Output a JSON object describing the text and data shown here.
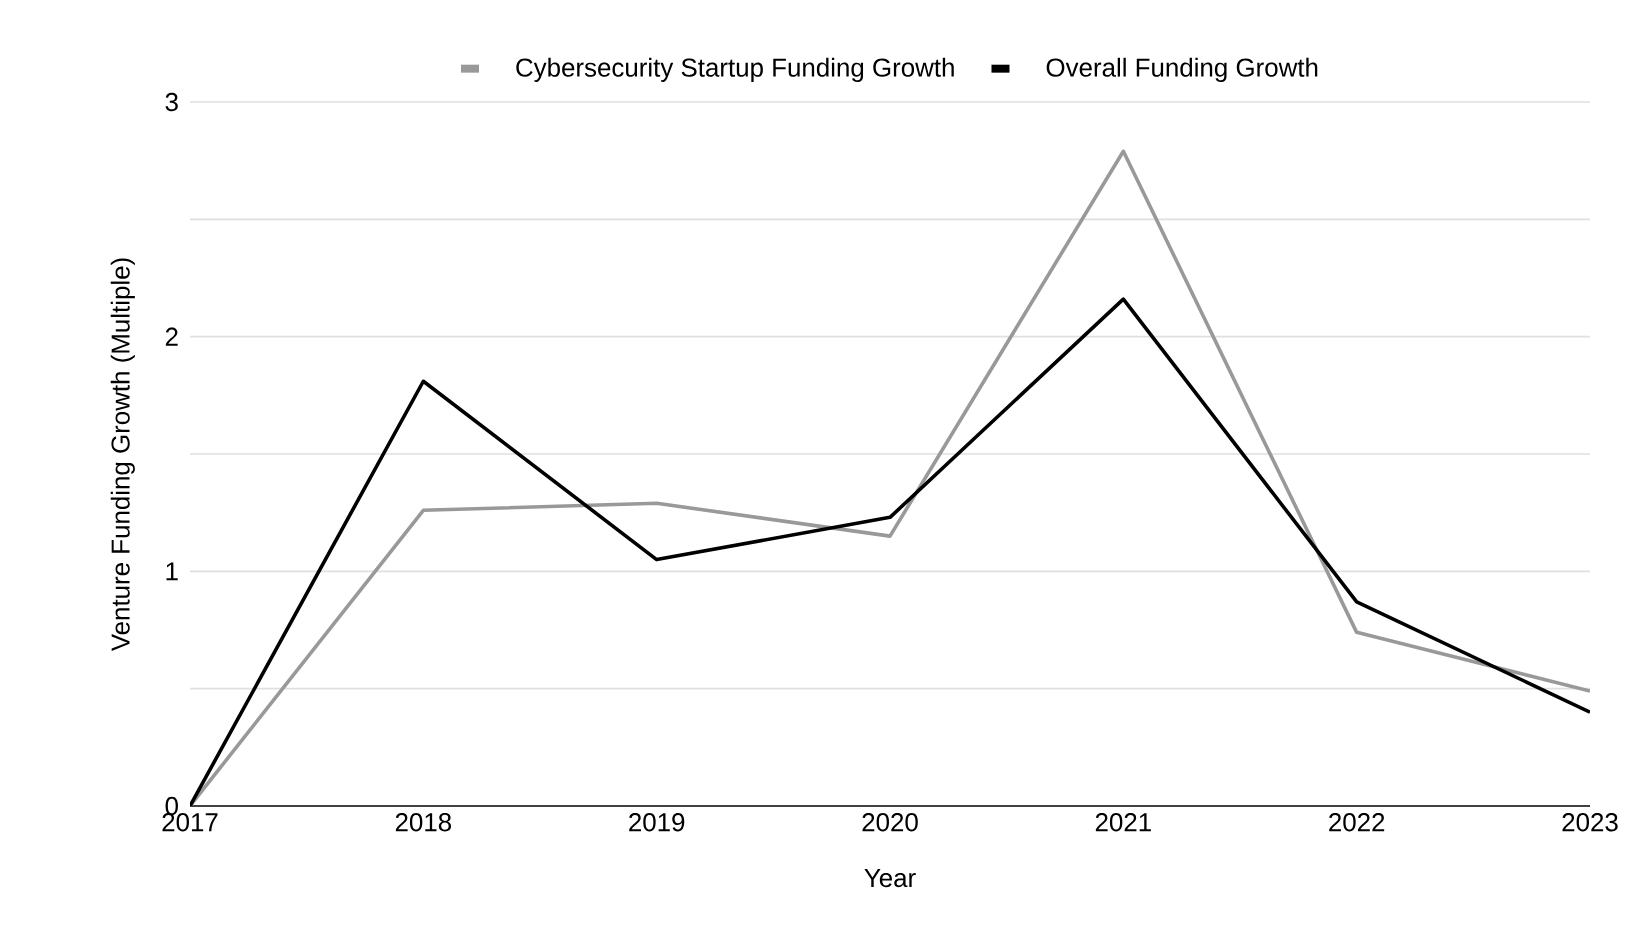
{
  "chart_data": {
    "type": "line",
    "xlabel": "Year",
    "ylabel": "Venture Funding Growth (Multiple)",
    "categories": [
      "2017",
      "2018",
      "2019",
      "2020",
      "2021",
      "2022",
      "2023"
    ],
    "series": [
      {
        "name": "Cybersecurity Startup Funding Growth",
        "color": "#999999",
        "values": [
          0,
          1.26,
          1.29,
          1.15,
          2.79,
          0.74,
          0.49
        ]
      },
      {
        "name": "Overall Funding Growth",
        "color": "#000000",
        "values": [
          0,
          1.81,
          1.05,
          1.23,
          2.16,
          0.87,
          0.4
        ]
      }
    ],
    "ylim": [
      0,
      3
    ],
    "yticks": [
      0,
      {
        "value": 0.5,
        "label": null
      },
      1,
      {
        "value": 1.5,
        "label": null
      },
      2,
      {
        "value": 2.5,
        "label": null
      },
      3
    ],
    "grid": "y",
    "legend": "top",
    "marker": "none",
    "line_style": "solid"
  }
}
